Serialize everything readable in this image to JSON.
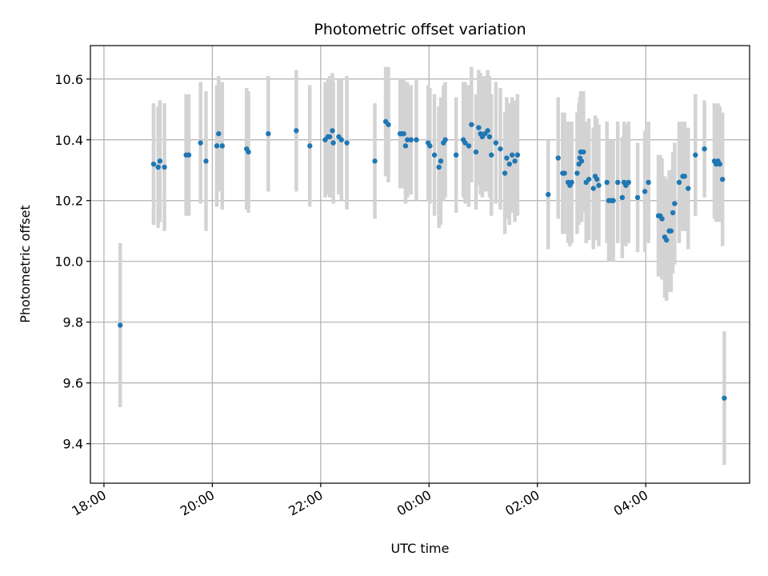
{
  "chart_data": {
    "type": "scatter",
    "title": "Photometric offset variation",
    "xlabel": "UTC time",
    "ylabel": "Photometric offset",
    "x_unit": "hours UTC (wrapping past midnight)",
    "xlim": [
      "17:45",
      "05:55"
    ],
    "ylim": [
      9.27,
      10.71
    ],
    "x_ticks": [
      "18:00",
      "20:00",
      "22:00",
      "00:00",
      "02:00",
      "04:00"
    ],
    "y_ticks": [
      "9.4",
      "9.6",
      "9.8",
      "10.0",
      "10.2",
      "10.4",
      "10.6"
    ],
    "grid": true,
    "colors": {
      "points": "#1f77b4",
      "error_bars": "#d3d3d3",
      "grid": "#b0b0b0"
    },
    "series": [
      {
        "points": [
          [
            "18:18",
            9.79,
            0.27
          ],
          [
            "18:55",
            10.32,
            0.2
          ],
          [
            "19:00",
            10.31,
            0.2
          ],
          [
            "19:02",
            10.33,
            0.2
          ],
          [
            "19:07",
            10.31,
            0.21
          ],
          [
            "19:31",
            10.35,
            0.2
          ],
          [
            "19:34",
            10.35,
            0.2
          ],
          [
            "19:47",
            10.39,
            0.2
          ],
          [
            "19:53",
            10.33,
            0.23
          ],
          [
            "20:05",
            10.38,
            0.2
          ],
          [
            "20:07",
            10.42,
            0.19
          ],
          [
            "20:11",
            10.38,
            0.21
          ],
          [
            "20:38",
            10.37,
            0.2
          ],
          [
            "20:40",
            10.36,
            0.2
          ],
          [
            "21:02",
            10.42,
            0.19
          ],
          [
            "21:33",
            10.43,
            0.2
          ],
          [
            "21:48",
            10.38,
            0.2
          ],
          [
            "22:05",
            10.4,
            0.19
          ],
          [
            "22:08",
            10.41,
            0.19
          ],
          [
            "22:10",
            10.41,
            0.2
          ],
          [
            "22:13",
            10.43,
            0.19
          ],
          [
            "22:14",
            10.39,
            0.2
          ],
          [
            "22:20",
            10.41,
            0.19
          ],
          [
            "22:23",
            10.4,
            0.2
          ],
          [
            "22:29",
            10.39,
            0.22
          ],
          [
            "23:00",
            10.33,
            0.19
          ],
          [
            "23:12",
            10.46,
            0.18
          ],
          [
            "23:15",
            10.45,
            0.19
          ],
          [
            "23:28",
            10.42,
            0.18
          ],
          [
            "23:30",
            10.42,
            0.18
          ],
          [
            "23:32",
            10.42,
            0.18
          ],
          [
            "23:34",
            10.38,
            0.19
          ],
          [
            "23:36",
            10.4,
            0.19
          ],
          [
            "23:40",
            10.4,
            0.18
          ],
          [
            "23:46",
            10.4,
            0.2
          ],
          [
            "23:59",
            10.39,
            0.19
          ],
          [
            "00:01",
            10.38,
            0.19
          ],
          [
            "00:06",
            10.35,
            0.2
          ],
          [
            "00:11",
            10.31,
            0.2
          ],
          [
            "00:13",
            10.33,
            0.21
          ],
          [
            "00:16",
            10.39,
            0.19
          ],
          [
            "00:18",
            10.4,
            0.19
          ],
          [
            "00:30",
            10.35,
            0.19
          ],
          [
            "00:38",
            10.4,
            0.19
          ],
          [
            "00:40",
            10.39,
            0.2
          ],
          [
            "00:44",
            10.38,
            0.2
          ],
          [
            "00:47",
            10.45,
            0.19
          ],
          [
            "00:52",
            10.36,
            0.19
          ],
          [
            "00:55",
            10.44,
            0.19
          ],
          [
            "00:57",
            10.42,
            0.2
          ],
          [
            "00:59",
            10.41,
            0.2
          ],
          [
            "01:02",
            10.42,
            0.19
          ],
          [
            "01:05",
            10.43,
            0.2
          ],
          [
            "01:07",
            10.41,
            0.2
          ],
          [
            "01:09",
            10.35,
            0.2
          ],
          [
            "01:14",
            10.39,
            0.2
          ],
          [
            "01:19",
            10.37,
            0.2
          ],
          [
            "01:24",
            10.29,
            0.2
          ],
          [
            "01:26",
            10.34,
            0.2
          ],
          [
            "01:29",
            10.32,
            0.2
          ],
          [
            "01:32",
            10.35,
            0.19
          ],
          [
            "01:35",
            10.33,
            0.2
          ],
          [
            "01:38",
            10.35,
            0.2
          ],
          [
            "02:12",
            10.22,
            0.18
          ],
          [
            "02:23",
            10.34,
            0.2
          ],
          [
            "02:28",
            10.29,
            0.2
          ],
          [
            "02:30",
            10.29,
            0.2
          ],
          [
            "02:34",
            10.26,
            0.2
          ],
          [
            "02:36",
            10.25,
            0.2
          ],
          [
            "02:38",
            10.26,
            0.2
          ],
          [
            "02:44",
            10.29,
            0.2
          ],
          [
            "02:46",
            10.32,
            0.2
          ],
          [
            "02:47",
            10.34,
            0.2
          ],
          [
            "02:48",
            10.36,
            0.2
          ],
          [
            "02:49",
            10.33,
            0.2
          ],
          [
            "02:51",
            10.36,
            0.2
          ],
          [
            "02:54",
            10.26,
            0.2
          ],
          [
            "02:57",
            10.27,
            0.2
          ],
          [
            "03:02",
            10.24,
            0.2
          ],
          [
            "03:04",
            10.28,
            0.2
          ],
          [
            "03:06",
            10.27,
            0.2
          ],
          [
            "03:08",
            10.25,
            0.2
          ],
          [
            "03:17",
            10.26,
            0.2
          ],
          [
            "03:19",
            10.2,
            0.2
          ],
          [
            "03:22",
            10.2,
            0.2
          ],
          [
            "03:24",
            10.2,
            0.2
          ],
          [
            "03:29",
            10.26,
            0.2
          ],
          [
            "03:34",
            10.21,
            0.2
          ],
          [
            "03:36",
            10.26,
            0.2
          ],
          [
            "03:38",
            10.25,
            0.2
          ],
          [
            "03:41",
            10.26,
            0.2
          ],
          [
            "03:51",
            10.21,
            0.18
          ],
          [
            "03:59",
            10.23,
            0.2
          ],
          [
            "04:03",
            10.26,
            0.2
          ],
          [
            "04:14",
            10.15,
            0.2
          ],
          [
            "04:16",
            10.15,
            0.2
          ],
          [
            "04:18",
            10.14,
            0.2
          ],
          [
            "04:21",
            10.08,
            0.2
          ],
          [
            "04:23",
            10.07,
            0.2
          ],
          [
            "04:26",
            10.1,
            0.2
          ],
          [
            "04:28",
            10.1,
            0.2
          ],
          [
            "04:30",
            10.16,
            0.2
          ],
          [
            "04:32",
            10.19,
            0.2
          ],
          [
            "04:37",
            10.26,
            0.2
          ],
          [
            "04:41",
            10.28,
            0.18
          ],
          [
            "04:43",
            10.28,
            0.18
          ],
          [
            "04:47",
            10.24,
            0.2
          ],
          [
            "04:55",
            10.35,
            0.2
          ],
          [
            "05:05",
            10.37,
            0.16
          ],
          [
            "05:16",
            10.33,
            0.19
          ],
          [
            "05:18",
            10.32,
            0.19
          ],
          [
            "05:20",
            10.33,
            0.19
          ],
          [
            "05:22",
            10.32,
            0.19
          ],
          [
            "05:25",
            10.27,
            0.22
          ],
          [
            "05:27",
            9.55,
            0.22
          ]
        ]
      }
    ]
  }
}
